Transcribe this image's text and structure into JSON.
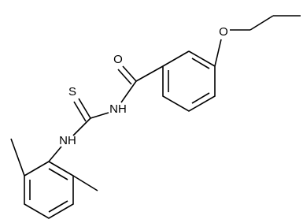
{
  "nodes": [
    {
      "label": "O"
    },
    {
      "label": "NH"
    },
    {
      "label": "S"
    },
    {
      "label": "NH"
    },
    {
      "label": "O"
    }
  ]
}
